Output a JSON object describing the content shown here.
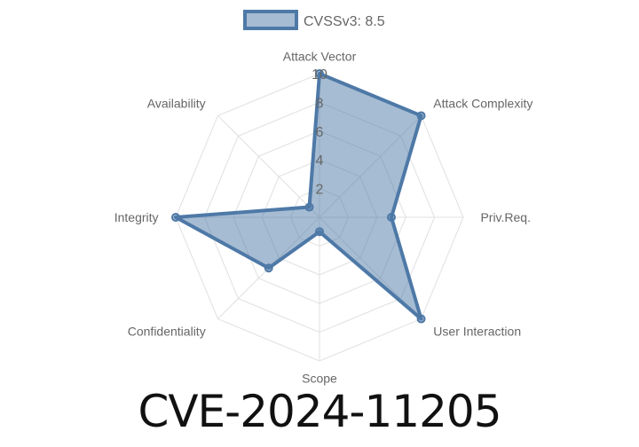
{
  "chart_data": {
    "type": "radar",
    "legend": {
      "label": "CVSSv3: 8.5",
      "position": "top"
    },
    "axes": [
      "Attack Vector",
      "Attack Complexity",
      "Priv.Req.",
      "User Interaction",
      "Scope",
      "Confidentiality",
      "Integrity",
      "Availability"
    ],
    "series": [
      {
        "name": "CVSSv3: 8.5",
        "values": [
          10,
          10,
          5,
          10,
          1,
          5,
          10,
          1
        ]
      }
    ],
    "rlim": [
      0,
      10
    ],
    "ticks": [
      "2",
      "4",
      "6",
      "8",
      "10"
    ],
    "grid": true,
    "colors": {
      "line": "#4e79a7",
      "fill": "rgba(78,121,167,0.5)",
      "grid": "#e0e0e0"
    }
  },
  "title": "CVE-2024-11205"
}
